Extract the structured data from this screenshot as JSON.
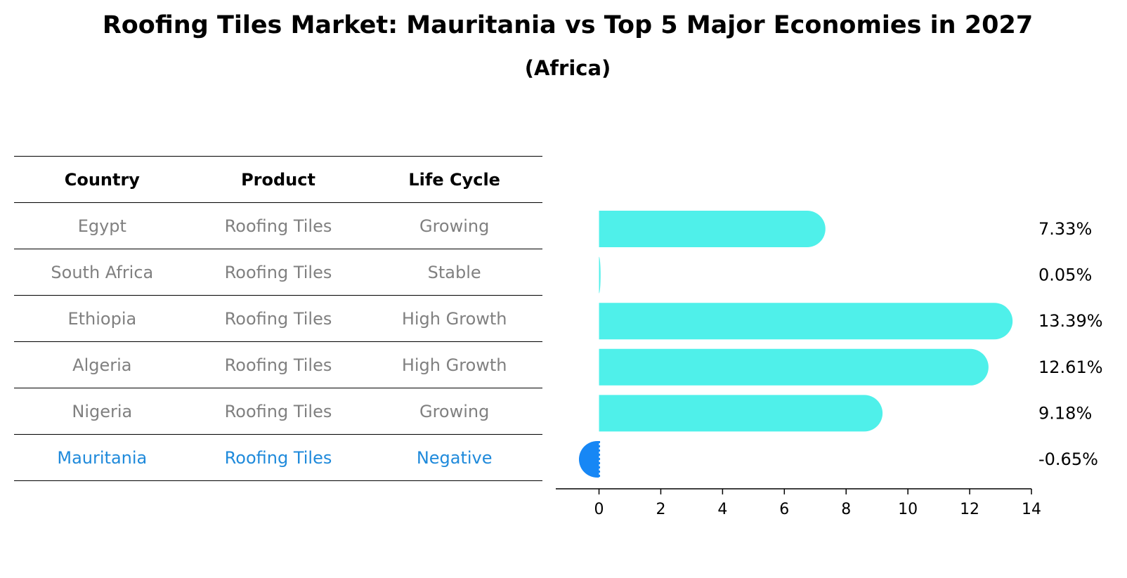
{
  "title": "Roofing Tiles Market: Mauritania vs Top 5 Major Economies in 2027",
  "subtitle": "(Africa)",
  "table": {
    "headers": [
      "Country",
      "Product",
      "Life Cycle"
    ],
    "rows": [
      [
        "Egypt",
        "Roofing Tiles",
        "Growing"
      ],
      [
        "South Africa",
        "Roofing Tiles",
        "Stable"
      ],
      [
        "Ethiopia",
        "Roofing Tiles",
        "High Growth"
      ],
      [
        "Algeria",
        "Roofing Tiles",
        "High Growth"
      ],
      [
        "Nigeria",
        "Roofing Tiles",
        "Growing"
      ],
      [
        "Mauritania",
        "Roofing Tiles",
        "Negative"
      ]
    ]
  },
  "chart_data": {
    "type": "bar",
    "orientation": "horizontal",
    "categories": [
      "Egypt",
      "South Africa",
      "Ethiopia",
      "Algeria",
      "Nigeria",
      "Mauritania"
    ],
    "values": [
      7.33,
      0.05,
      13.39,
      12.61,
      9.18,
      -0.65
    ],
    "value_labels": [
      "7.33%",
      "0.05%",
      "13.39%",
      "12.61%",
      "9.18%",
      "-0.65%"
    ],
    "xlim": [
      -1.4,
      14
    ],
    "xticks": [
      0,
      2,
      4,
      6,
      8,
      10,
      12,
      14
    ],
    "colors": {
      "positive": "#4ff0ea",
      "highlight": "#1787f5"
    },
    "highlight_category": "Mauritania",
    "grid": false
  }
}
